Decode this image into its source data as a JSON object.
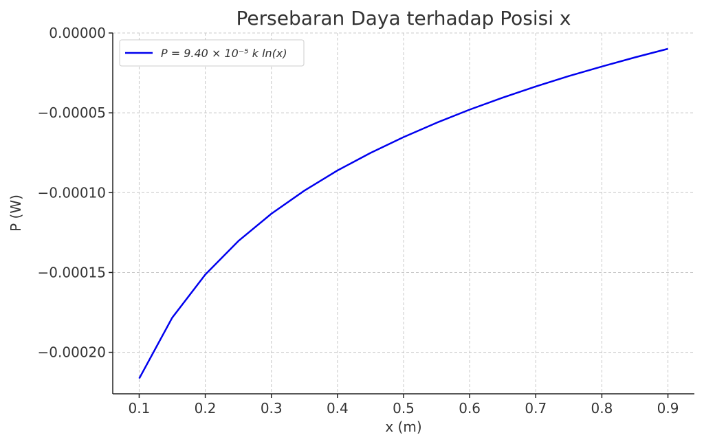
{
  "chart_data": {
    "type": "line",
    "title": "Persebaran Daya terhadap Posisi x",
    "xlabel": "x (m)",
    "ylabel": "P (W)",
    "xlim": [
      0.06,
      0.94
    ],
    "ylim": [
      -0.000226,
      0.0
    ],
    "xticks": [
      0.1,
      0.2,
      0.3,
      0.4,
      0.5,
      0.6,
      0.7,
      0.8,
      0.9
    ],
    "xtick_labels": [
      "0.1",
      "0.2",
      "0.3",
      "0.4",
      "0.5",
      "0.6",
      "0.7",
      "0.8",
      "0.9"
    ],
    "yticks": [
      0.0,
      -5e-05,
      -0.0001,
      -0.00015,
      -0.0002
    ],
    "ytick_labels": [
      "0.00000",
      "−0.00005",
      "−0.00010",
      "−0.00015",
      "−0.00020"
    ],
    "grid": true,
    "legend_position": "top-left",
    "series": [
      {
        "name": "P = 9.40 × 10⁻⁵ k ln(x)",
        "color": "#0000ee",
        "x": [
          0.1,
          0.15,
          0.2,
          0.25,
          0.3,
          0.35,
          0.4,
          0.45,
          0.5,
          0.55,
          0.6,
          0.65,
          0.7,
          0.75,
          0.8,
          0.85,
          0.9
        ],
        "y": [
          -0.0002164,
          -0.0001783,
          -0.0001513,
          -0.0001303,
          -0.0001132,
          -9.87e-05,
          -8.61e-05,
          -7.51e-05,
          -6.52e-05,
          -5.62e-05,
          -4.8e-05,
          -4.05e-05,
          -3.35e-05,
          -2.7e-05,
          -2.1e-05,
          -1.53e-05,
          -9.9e-06
        ]
      }
    ]
  }
}
